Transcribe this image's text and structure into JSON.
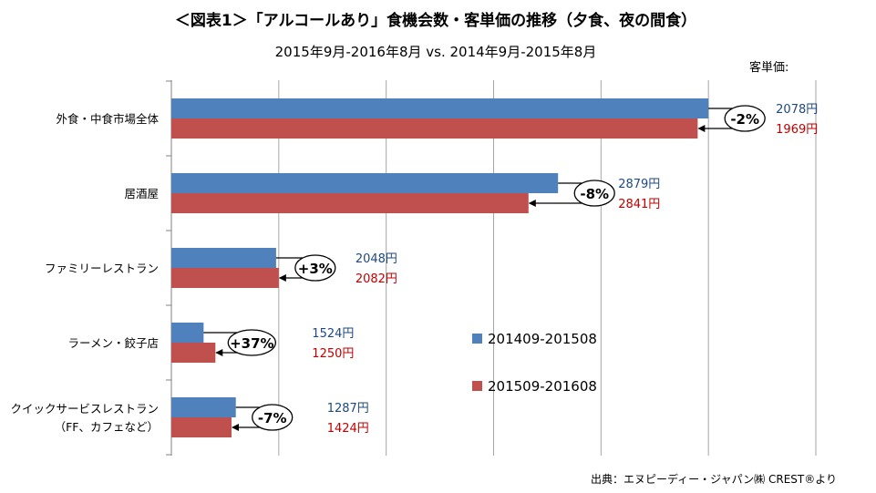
{
  "chart_data": {
    "type": "bar",
    "orientation": "horizontal",
    "title": "＜図表1＞「アルコールあり」食機会数・客単価の推移（夕食、夜の間食）",
    "subtitle": "2015年9月-2016年8月 vs.  2014年9月-2015年8月",
    "unit_label": "客単価:",
    "source": "出典：エヌピーディー・ジャパン㈱ CREST®より",
    "categories": [
      [
        "外食・中食市場全体"
      ],
      [
        "居酒屋"
      ],
      [
        "ファミリーレストラン"
      ],
      [
        "ラーメン・餃子店"
      ],
      [
        "クイックサービスレストラン",
        "（FF、カフェなど）"
      ]
    ],
    "series": [
      {
        "name": "201409-201508",
        "color": "#4f81bd",
        "values": [
          100,
          72,
          19.5,
          6,
          12
        ],
        "price_labels": [
          "2078円",
          "2879円",
          "2048円",
          "1524円",
          "1287円"
        ]
      },
      {
        "name": "201509-201608",
        "color": "#c0504d",
        "values": [
          98,
          66.5,
          20,
          8.2,
          11.2
        ],
        "price_labels": [
          "1969円",
          "2841円",
          "2082円",
          "1250円",
          "1424円"
        ]
      }
    ],
    "change_labels": [
      "-2%",
      "-8%",
      "+3%",
      "+37%",
      "-7%"
    ],
    "xlim": [
      0,
      120
    ],
    "gridlines": [
      20,
      40,
      60,
      80,
      100,
      120
    ],
    "grid": true,
    "legend_position": "center-right"
  }
}
